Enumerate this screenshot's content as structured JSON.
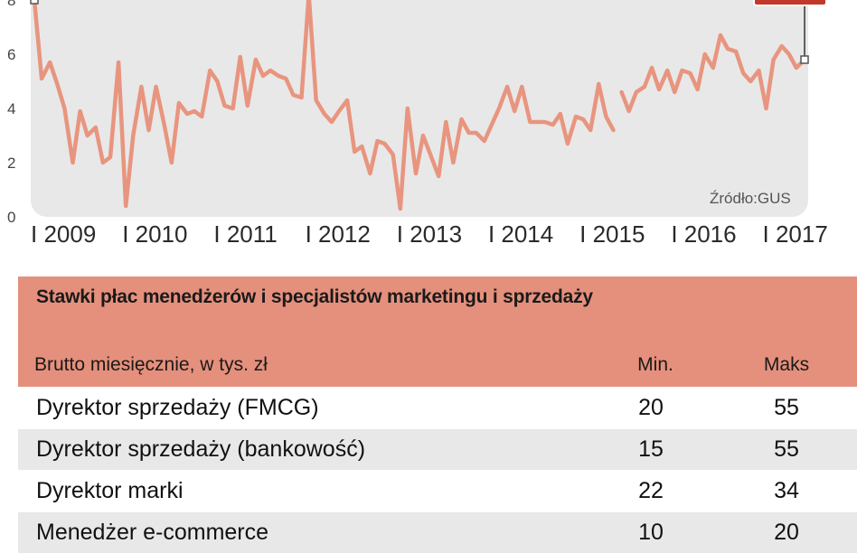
{
  "chart_data": {
    "type": "line",
    "source": "Źródło:GUS",
    "ylim": [
      0,
      8
    ],
    "yticks": [
      "0",
      "2",
      "4",
      "6",
      "8"
    ],
    "xlim": [
      2009,
      2017.5
    ],
    "xticks": [
      {
        "label": "I 2009",
        "value": 2009
      },
      {
        "label": "I 2010",
        "value": 2010
      },
      {
        "label": "I 2011",
        "value": 2011
      },
      {
        "label": "I 2012",
        "value": 2012
      },
      {
        "label": "I 2013",
        "value": 2013
      },
      {
        "label": "I 2014",
        "value": 2014
      },
      {
        "label": "I 2015",
        "value": 2015
      },
      {
        "label": "I 2016",
        "value": 2016
      },
      {
        "label": "I 2017",
        "value": 2017
      }
    ],
    "grid": false,
    "series": [
      {
        "color": "#e8957f",
        "segments": [
          {
            "x": [
              2009.0,
              2009.08,
              2009.17,
              2009.25,
              2009.33,
              2009.42,
              2009.5,
              2009.58,
              2009.67,
              2009.75,
              2009.83,
              2009.92,
              2010.0,
              2010.08,
              2010.17,
              2010.25,
              2010.33,
              2010.42,
              2010.5,
              2010.58,
              2010.67,
              2010.75,
              2010.83,
              2010.92,
              2011.0,
              2011.08,
              2011.17,
              2011.25,
              2011.33,
              2011.42,
              2011.5,
              2011.58,
              2011.67,
              2011.75,
              2011.83,
              2011.92,
              2012.0,
              2012.08,
              2012.17,
              2012.25,
              2012.33,
              2012.42,
              2012.5,
              2012.58,
              2012.67,
              2012.75,
              2012.83,
              2012.92,
              2013.0,
              2013.08,
              2013.17,
              2013.25,
              2013.33,
              2013.42,
              2013.5,
              2013.58,
              2013.67,
              2013.75,
              2013.83,
              2013.92,
              2014.0,
              2014.08,
              2014.17,
              2014.25,
              2014.33,
              2014.42,
              2014.5,
              2014.58,
              2014.67,
              2014.75,
              2014.83,
              2014.92,
              2015.0,
              2015.08,
              2015.17
            ],
            "y": [
              8.0,
              5.1,
              5.7,
              4.9,
              4.0,
              2.0,
              3.9,
              3.0,
              3.3,
              2.0,
              2.2,
              5.7,
              0.4,
              3.0,
              4.8,
              3.2,
              4.8,
              3.4,
              2.0,
              4.2,
              3.8,
              3.9,
              3.7,
              5.4,
              5.0,
              4.1,
              4.0,
              5.9,
              4.1,
              5.8,
              5.2,
              5.4,
              5.2,
              5.1,
              4.5,
              4.4,
              8.2,
              4.3,
              3.8,
              3.5,
              3.9,
              4.3,
              2.4,
              2.6,
              1.6,
              2.8,
              2.7,
              2.3,
              0.3,
              4.0,
              1.6,
              3.0,
              2.3,
              1.5,
              3.5,
              2.0,
              3.6,
              3.1,
              3.1,
              2.8,
              3.4,
              4.0,
              4.8,
              3.9,
              4.8,
              3.5,
              3.5,
              3.5,
              3.4,
              3.8,
              2.7,
              3.7,
              3.6,
              3.2,
              4.9
            ]
          },
          {
            "x": [
              2015.17,
              2015.25,
              2015.33
            ],
            "y": [
              4.9,
              3.7,
              3.2
            ]
          },
          {
            "x": [
              2015.42,
              2015.5,
              2015.58,
              2015.67,
              2015.75,
              2015.83,
              2015.92,
              2016.0,
              2016.08,
              2016.17,
              2016.25,
              2016.33,
              2016.42,
              2016.5,
              2016.58,
              2016.67,
              2016.75,
              2016.83,
              2016.92,
              2017.0,
              2017.08,
              2017.17,
              2017.25,
              2017.33,
              2017.42
            ],
            "y": [
              4.6,
              3.9,
              4.6,
              4.8,
              5.5,
              4.7,
              5.4,
              4.6,
              5.4,
              5.3,
              4.7,
              6.0,
              5.5,
              6.7,
              6.2,
              6.1,
              5.3,
              5.0,
              5.4,
              4.0,
              5.8,
              6.3,
              6.0,
              5.5,
              5.8
            ]
          }
        ]
      }
    ]
  },
  "table": {
    "title": "Stawki płac menedżerów i specjalistów marketingu i sprzedaży",
    "subhead": "Brutto miesięcznie, w tys. zł",
    "col_min": "Min.",
    "col_max": "Maks",
    "rows": [
      {
        "name": "Dyrektor sprzedaży (FMCG)",
        "min": "20",
        "max": "55"
      },
      {
        "name": "Dyrektor sprzedaży (bankowość)",
        "min": "15",
        "max": "55"
      },
      {
        "name": "Dyrektor marki",
        "min": "22",
        "max": "34"
      },
      {
        "name": "Menedżer e-commerce",
        "min": "10",
        "max": "20"
      }
    ]
  },
  "colors": {
    "line": "#e8957f",
    "plot_bg": "#e8e8e8",
    "header_bg": "#e5907c",
    "row_alt": "#e8e8e8",
    "marker_box": "#c0392b"
  }
}
